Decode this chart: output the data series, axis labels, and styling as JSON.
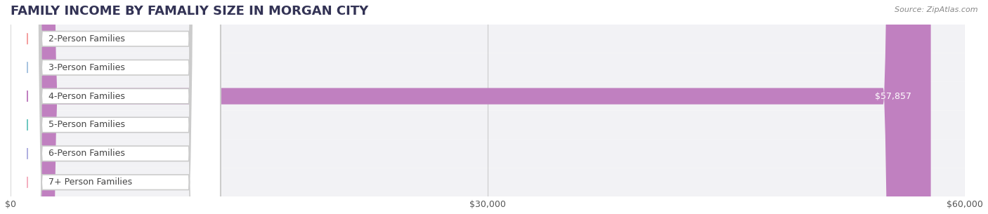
{
  "title": "FAMILY INCOME BY FAMALIY SIZE IN MORGAN CITY",
  "source": "Source: ZipAtlas.com",
  "categories": [
    "2-Person Families",
    "3-Person Families",
    "4-Person Families",
    "5-Person Families",
    "6-Person Families",
    "7+ Person Families"
  ],
  "values": [
    0,
    0,
    57857,
    0,
    0,
    0
  ],
  "bar_colors": [
    "#f4a0a0",
    "#a8c4e0",
    "#c080c0",
    "#70c8c0",
    "#b0b0e0",
    "#f4b0c0"
  ],
  "label_colors": [
    "#f4a0a0",
    "#a8c4e0",
    "#c080c0",
    "#70c8c0",
    "#b0b0e0",
    "#f4b0c0"
  ],
  "icon_colors": [
    "#f08080",
    "#80a8d8",
    "#a060b0",
    "#50b8b0",
    "#9090d0",
    "#f098b0"
  ],
  "xlim": [
    0,
    60000
  ],
  "xticks": [
    0,
    30000,
    60000
  ],
  "xticklabels": [
    "$0",
    "$30,000",
    "$60,000"
  ],
  "title_fontsize": 13,
  "label_fontsize": 9,
  "value_fontsize": 9,
  "background_color": "#ffffff",
  "row_bg_color": "#f2f2f5",
  "bar_height": 0.55,
  "figsize": [
    14.06,
    3.05
  ],
  "dpi": 100
}
